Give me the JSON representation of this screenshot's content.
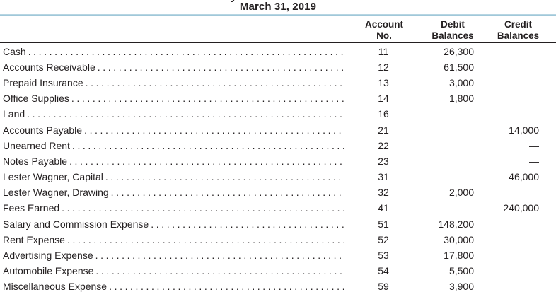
{
  "page": {
    "cropped_line_fragment": "y",
    "date_line": "March 31, 2019"
  },
  "table": {
    "headers": {
      "account": [
        "Account",
        "No."
      ],
      "debit": [
        "Debit",
        "Balances"
      ],
      "credit": [
        "Credit",
        "Balances"
      ]
    },
    "rows": [
      {
        "name": "Cash",
        "no": "11",
        "debit": "26,300",
        "credit": ""
      },
      {
        "name": "Accounts Receivable",
        "no": "12",
        "debit": "61,500",
        "credit": ""
      },
      {
        "name": "Prepaid Insurance",
        "no": "13",
        "debit": "3,000",
        "credit": ""
      },
      {
        "name": "Office Supplies",
        "no": "14",
        "debit": "1,800",
        "credit": ""
      },
      {
        "name": "Land",
        "no": "16",
        "debit": "—",
        "credit": ""
      },
      {
        "name": "Accounts Payable",
        "no": "21",
        "debit": "",
        "credit": "14,000"
      },
      {
        "name": "Unearned Rent",
        "no": "22",
        "debit": "",
        "credit": "—"
      },
      {
        "name": "Notes Payable",
        "no": "23",
        "debit": "",
        "credit": "—"
      },
      {
        "name": "Lester Wagner, Capital",
        "no": "31",
        "debit": "",
        "credit": "46,000"
      },
      {
        "name": "Lester Wagner, Drawing",
        "no": "32",
        "debit": "2,000",
        "credit": ""
      },
      {
        "name": "Fees Earned",
        "no": "41",
        "debit": "",
        "credit": "240,000"
      },
      {
        "name": "Salary and Commission Expense",
        "no": "51",
        "debit": "148,200",
        "credit": ""
      },
      {
        "name": "Rent Expense",
        "no": "52",
        "debit": "30,000",
        "credit": ""
      },
      {
        "name": "Advertising Expense",
        "no": "53",
        "debit": "17,800",
        "credit": ""
      },
      {
        "name": "Automobile Expense",
        "no": "54",
        "debit": "5,500",
        "credit": ""
      },
      {
        "name": "Miscellaneous Expense",
        "no": "59",
        "debit": "3,900",
        "credit": ""
      }
    ]
  },
  "colors": {
    "accent_rule": "#9cc6d8",
    "text": "#231f20"
  }
}
